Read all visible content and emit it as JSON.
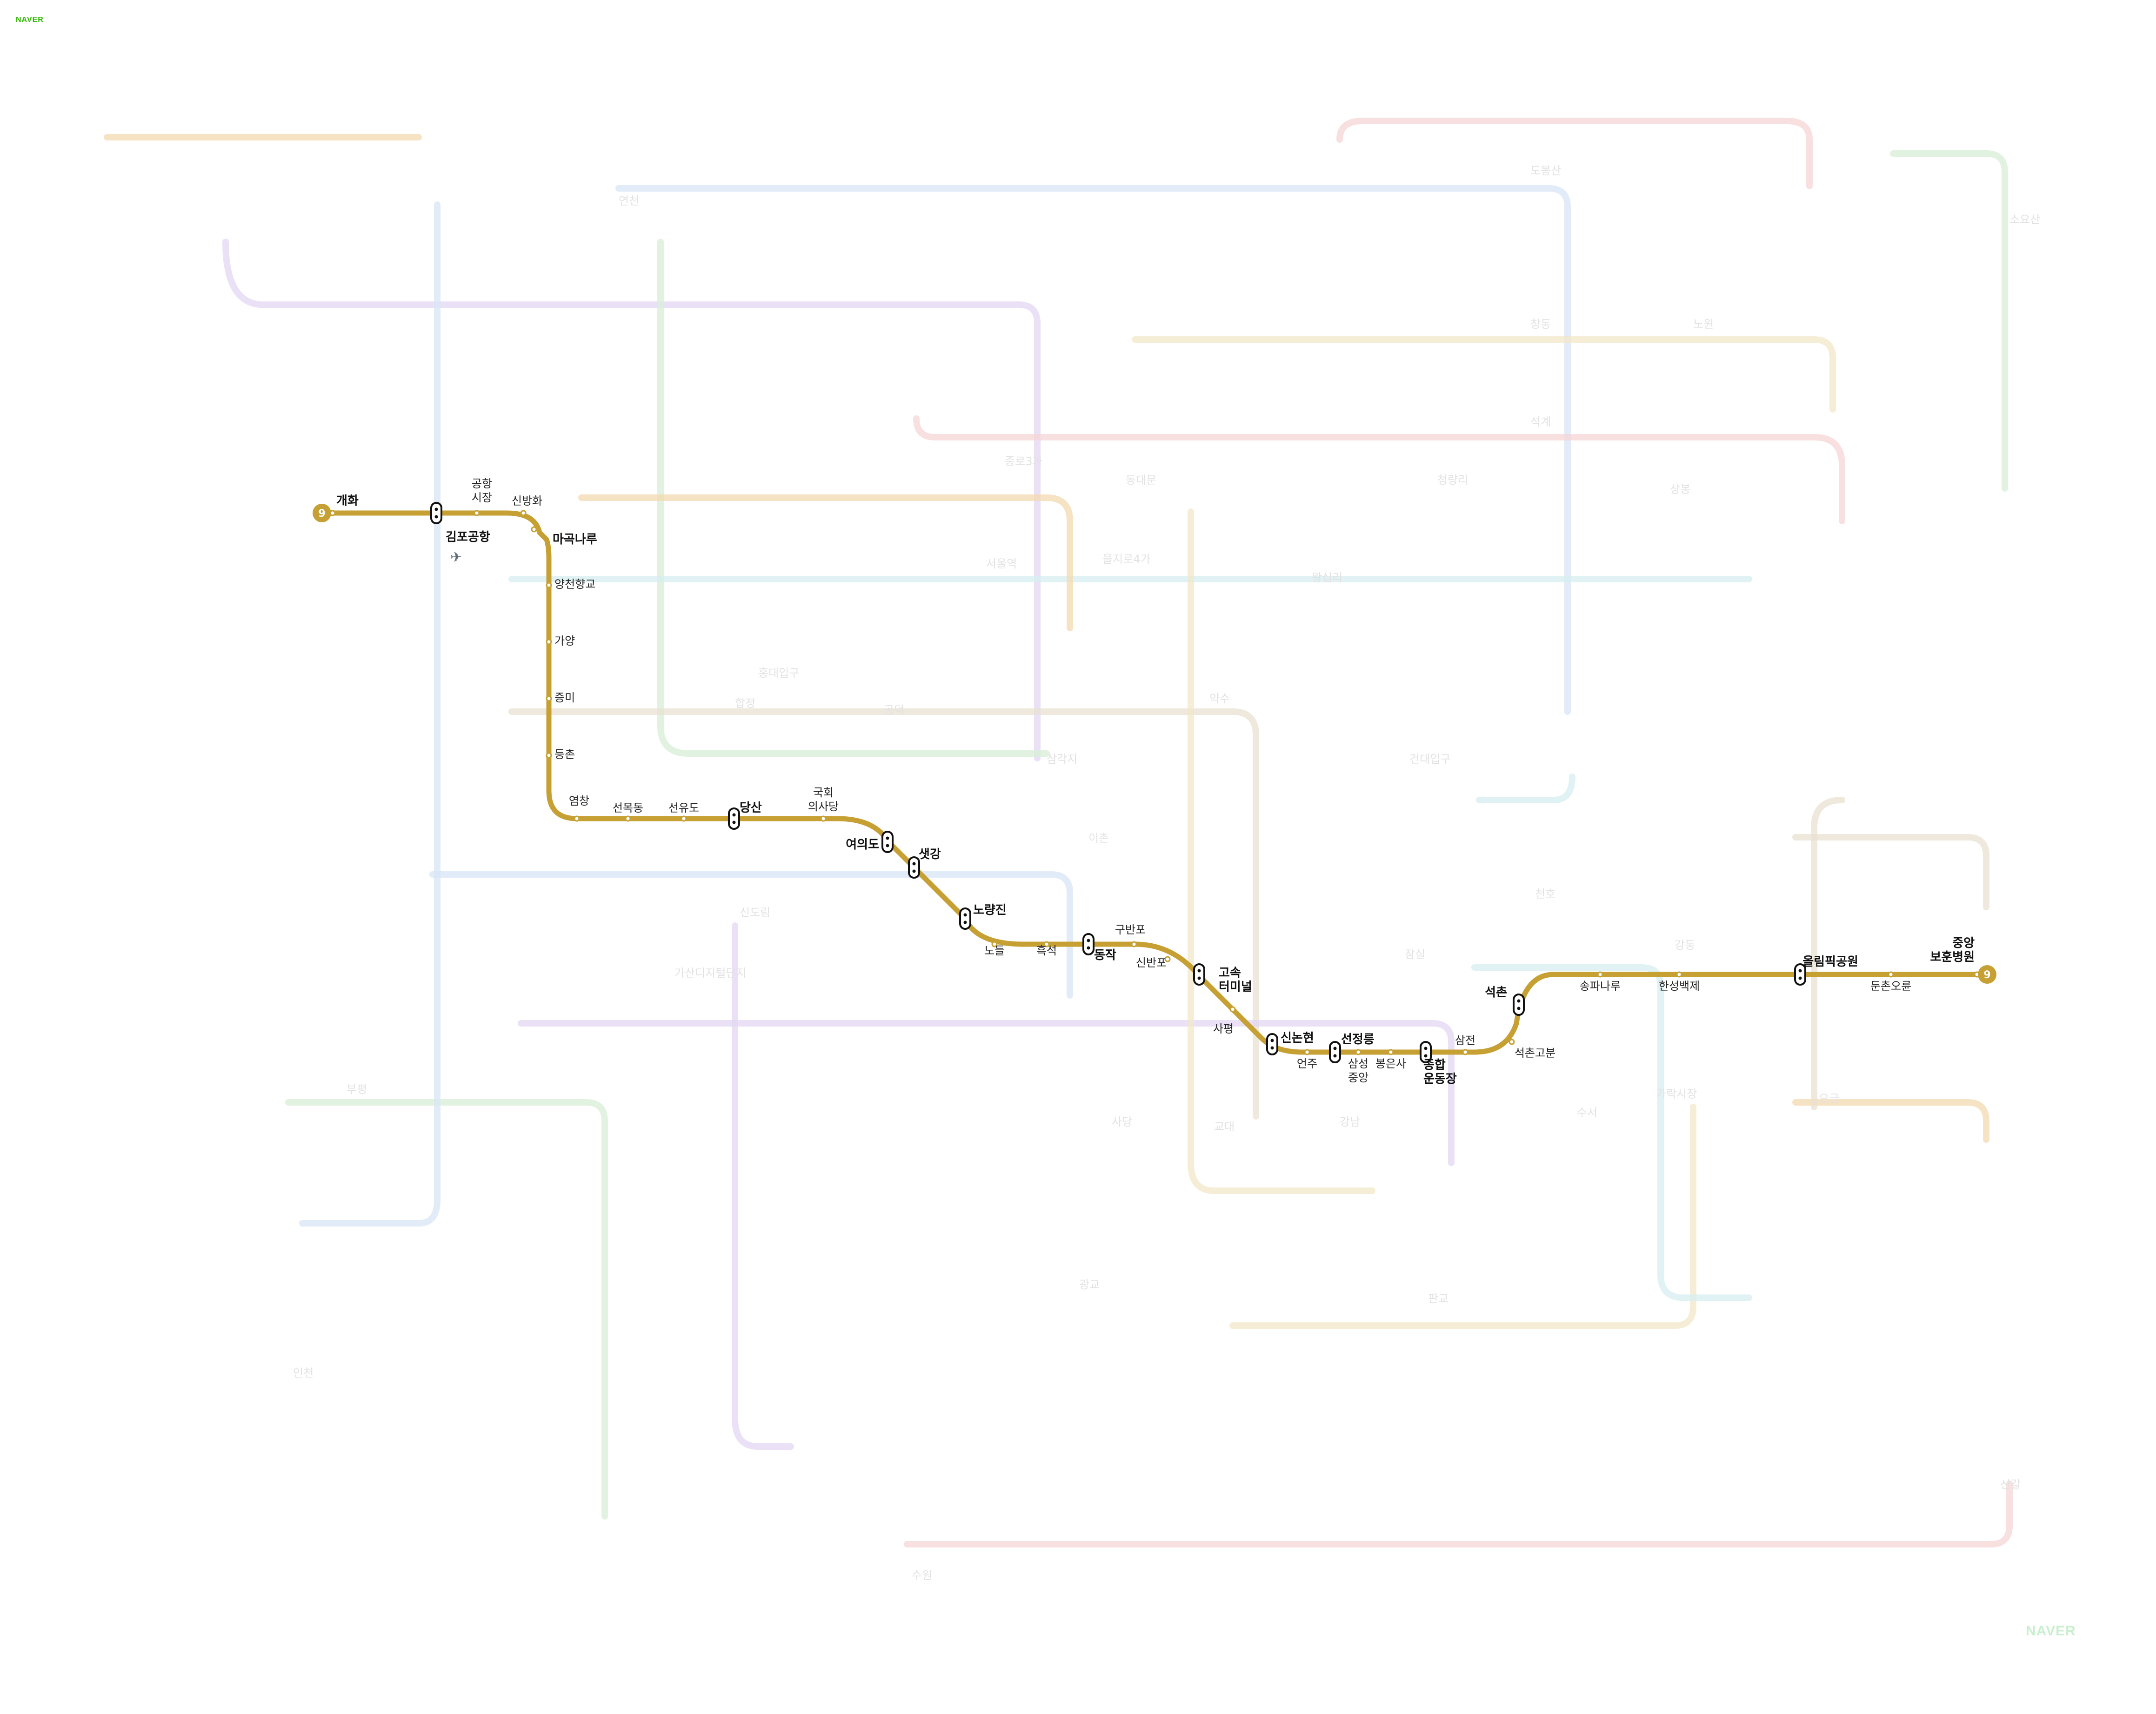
{
  "brand": {
    "top": "NAVER",
    "bottom": "NAVER"
  },
  "line9": {
    "number": "9",
    "color": "#c6a033",
    "stations": [
      {
        "name": "개화",
        "emphasis": true
      },
      {
        "name": "김포공항",
        "emphasis": true,
        "icon": "airplane-icon"
      },
      {
        "name": "공항\n시장",
        "emphasis": false
      },
      {
        "name": "신방화",
        "emphasis": false
      },
      {
        "name": "마곡나루",
        "emphasis": true
      },
      {
        "name": "양천향교",
        "emphasis": false
      },
      {
        "name": "가양",
        "emphasis": false
      },
      {
        "name": "증미",
        "emphasis": false
      },
      {
        "name": "등촌",
        "emphasis": false
      },
      {
        "name": "염창",
        "emphasis": false
      },
      {
        "name": "선목동",
        "emphasis": false
      },
      {
        "name": "선유도",
        "emphasis": false
      },
      {
        "name": "당산",
        "emphasis": true
      },
      {
        "name": "국회\n의사당",
        "emphasis": false
      },
      {
        "name": "여의도",
        "emphasis": true
      },
      {
        "name": "샛강",
        "emphasis": true
      },
      {
        "name": "노량진",
        "emphasis": true
      },
      {
        "name": "노들",
        "emphasis": false
      },
      {
        "name": "흑석",
        "emphasis": false
      },
      {
        "name": "동작",
        "emphasis": true
      },
      {
        "name": "구반포",
        "emphasis": false
      },
      {
        "name": "신반포",
        "emphasis": false
      },
      {
        "name": "고속\n터미널",
        "emphasis": true
      },
      {
        "name": "사평",
        "emphasis": false
      },
      {
        "name": "신논현",
        "emphasis": true
      },
      {
        "name": "언주",
        "emphasis": false
      },
      {
        "name": "선정릉",
        "emphasis": true
      },
      {
        "name": "삼성\n중앙",
        "emphasis": false
      },
      {
        "name": "봉은사",
        "emphasis": false
      },
      {
        "name": "종합\n운동장",
        "emphasis": true
      },
      {
        "name": "삼전",
        "emphasis": false
      },
      {
        "name": "석촌고분",
        "emphasis": false
      },
      {
        "name": "석촌",
        "emphasis": true
      },
      {
        "name": "송파나루",
        "emphasis": false
      },
      {
        "name": "한성백제",
        "emphasis": false
      },
      {
        "name": "올림픽공원",
        "emphasis": true
      },
      {
        "name": "둔촌오륜",
        "emphasis": false
      },
      {
        "name": "중앙\n보훈병원",
        "emphasis": true
      }
    ]
  },
  "background_lines": [
    {
      "color": "#f3d9b0"
    },
    {
      "color": "#d8e6f6"
    },
    {
      "color": "#e3d7f3"
    },
    {
      "color": "#d7efd6"
    },
    {
      "color": "#f6d6d6"
    },
    {
      "color": "#f2e7c8"
    },
    {
      "color": "#d6eef0"
    },
    {
      "color": "#e8e0d2"
    }
  ],
  "background_labels": [
    "연천",
    "도봉산",
    "창동",
    "노원",
    "석계",
    "상봉",
    "건대입구",
    "잠실",
    "가산디지털단지",
    "신도림",
    "사당",
    "수원",
    "인천",
    "부평",
    "소요산",
    "홍대입구",
    "합정",
    "공덕",
    "삼각지",
    "이촌",
    "왕십리",
    "청량리",
    "서울역",
    "종로3가",
    "을지로4가",
    "동대문",
    "약수",
    "교대",
    "강남",
    "판교",
    "수서",
    "가락시장",
    "오금",
    "천호",
    "강동",
    "신갈",
    "광교"
  ]
}
